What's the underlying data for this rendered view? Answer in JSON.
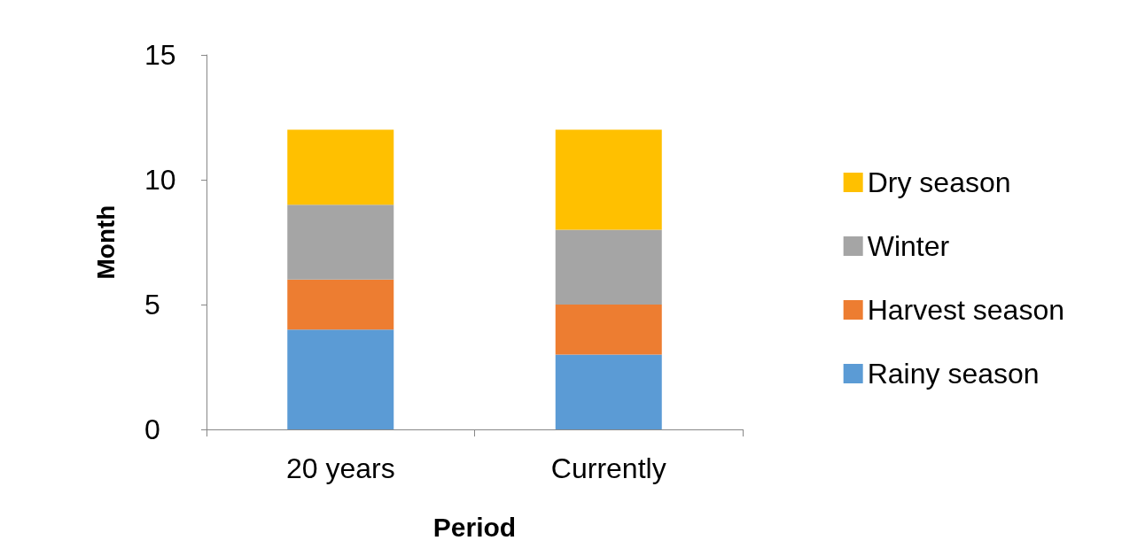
{
  "chart_data": {
    "type": "bar",
    "stacked": true,
    "xlabel": "Period",
    "ylabel": "Month",
    "categories": [
      "20 years",
      "Currently"
    ],
    "series": [
      {
        "name": "Rainy season",
        "color": "#5b9bd5",
        "values": [
          4,
          3
        ]
      },
      {
        "name": "Harvest season",
        "color": "#ed7d31",
        "values": [
          2,
          2
        ]
      },
      {
        "name": "Winter",
        "color": "#a5a5a5",
        "values": [
          3,
          3
        ]
      },
      {
        "name": "Dry season",
        "color": "#ffc000",
        "values": [
          3,
          4
        ]
      }
    ],
    "ylim": [
      0,
      15
    ],
    "yticks": [
      0,
      5,
      10,
      15
    ],
    "grid": false,
    "legend": "right"
  }
}
